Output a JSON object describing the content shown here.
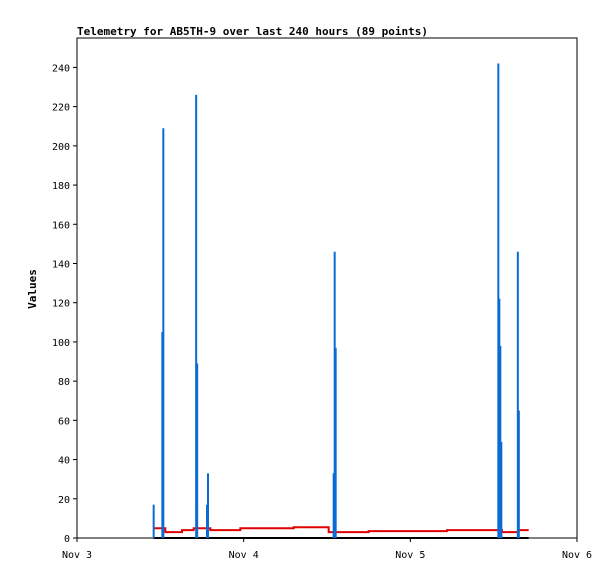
{
  "chart_data": {
    "type": "line",
    "title": "Telemetry for AB5TH-9 over last 240 hours (89 points)",
    "xlabel": "",
    "ylabel": "Values",
    "x_ticks": [
      "Nov 3",
      "Nov 4",
      "Nov 5",
      "Nov 6"
    ],
    "x_range_days": [
      0,
      3
    ],
    "ylim": [
      0,
      255
    ],
    "y_ticks": [
      0,
      20,
      40,
      60,
      80,
      100,
      120,
      140,
      160,
      180,
      200,
      220,
      240
    ],
    "grid": false,
    "legend": "none",
    "colors": {
      "spikes": "#0a6bd4",
      "red_series": "#e00000",
      "baseline": "#000000"
    },
    "series": [
      {
        "style": "impulse",
        "points": [
          {
            "x": 0.46,
            "y": 17
          },
          {
            "x": 0.512,
            "y": 105
          },
          {
            "x": 0.518,
            "y": 209
          },
          {
            "x": 0.715,
            "y": 226
          },
          {
            "x": 0.721,
            "y": 89
          },
          {
            "x": 0.78,
            "y": 17
          },
          {
            "x": 0.786,
            "y": 33
          },
          {
            "x": 1.54,
            "y": 33
          },
          {
            "x": 1.546,
            "y": 146
          },
          {
            "x": 1.552,
            "y": 97
          },
          {
            "x": 2.528,
            "y": 242
          },
          {
            "x": 2.534,
            "y": 122
          },
          {
            "x": 2.54,
            "y": 98
          },
          {
            "x": 2.546,
            "y": 49
          },
          {
            "x": 2.645,
            "y": 146
          },
          {
            "x": 2.651,
            "y": 65
          }
        ]
      },
      {
        "style": "step",
        "points": [
          {
            "x": 0.46,
            "y": 5
          },
          {
            "x": 0.53,
            "y": 3
          },
          {
            "x": 0.63,
            "y": 4
          },
          {
            "x": 0.7,
            "y": 5
          },
          {
            "x": 0.8,
            "y": 4
          },
          {
            "x": 0.98,
            "y": 5
          },
          {
            "x": 1.3,
            "y": 5.5
          },
          {
            "x": 1.51,
            "y": 3
          },
          {
            "x": 1.75,
            "y": 3.5
          },
          {
            "x": 2.22,
            "y": 4
          },
          {
            "x": 2.55,
            "y": 3
          },
          {
            "x": 2.65,
            "y": 4
          },
          {
            "x": 2.71,
            "y": 4
          }
        ]
      },
      {
        "style": "line",
        "points": [
          {
            "x": 0.46,
            "y": 0
          },
          {
            "x": 2.71,
            "y": 0
          }
        ]
      }
    ]
  }
}
